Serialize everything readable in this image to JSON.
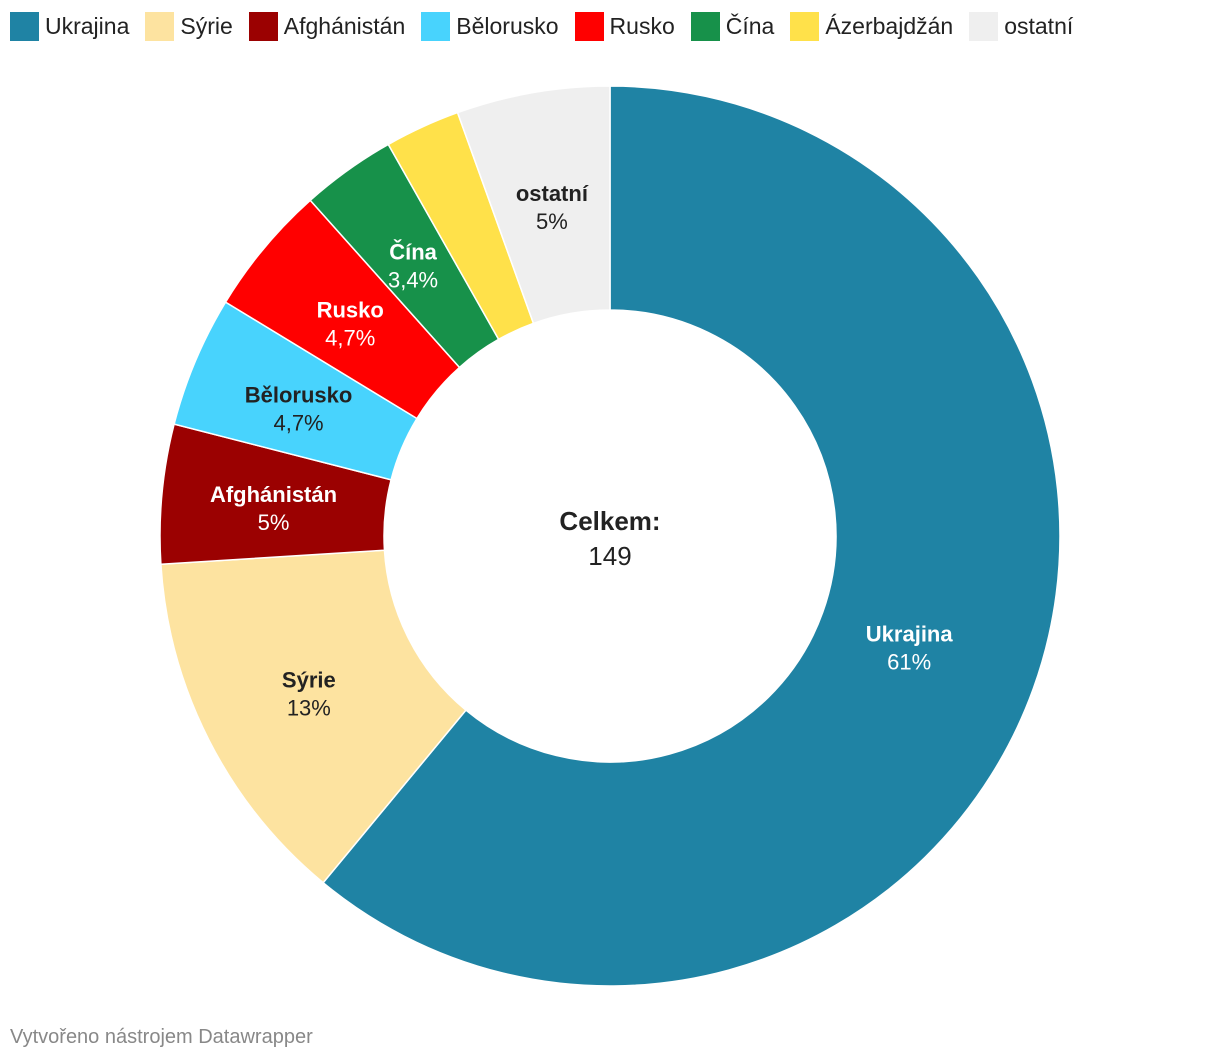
{
  "chart_data": {
    "type": "pie",
    "donut": true,
    "legend_position": "top-left",
    "center_title": "Celkem:",
    "center_value": "149",
    "slices": [
      {
        "name": "Ukrajina",
        "value": 61,
        "label": "61%",
        "color": "#1f83a4",
        "text_color": "#ffffff",
        "legend_name": "Ukrajina",
        "show_label": true
      },
      {
        "name": "Sýrie",
        "value": 13,
        "label": "13%",
        "color": "#fde3a0",
        "text_color": "#222222",
        "legend_name": "Sýrie",
        "show_label": true
      },
      {
        "name": "Afghánistán",
        "value": 5,
        "label": "5%",
        "color": "#9b0101",
        "text_color": "#ffffff",
        "legend_name": "Afghánistán",
        "show_label": true
      },
      {
        "name": "Bělorusko",
        "value": 4.7,
        "label": "4,7%",
        "color": "#48d3fd",
        "text_color": "#222222",
        "legend_name": "Bělorusko",
        "show_label": true
      },
      {
        "name": "Rusko",
        "value": 4.7,
        "label": "4,7%",
        "color": "#ff0000",
        "text_color": "#ffffff",
        "legend_name": "Rusko",
        "show_label": true
      },
      {
        "name": "Čína",
        "value": 3.4,
        "label": "3,4%",
        "color": "#17914a",
        "text_color": "#ffffff",
        "legend_name": "Čína",
        "show_label": true
      },
      {
        "name": "Ázerbajdžán",
        "value": 2.7,
        "label": "",
        "color": "#ffe14a",
        "text_color": "#222222",
        "legend_name": "Ázerbajdžán",
        "show_label": false
      },
      {
        "name": "ostatní",
        "value": 5.5,
        "label": "5%",
        "color": "#efefef",
        "text_color": "#222222",
        "legend_name": "ostatní",
        "show_label": true
      }
    ]
  },
  "footer": {
    "credit": "Vytvořeno nástrojem Datawrapper"
  }
}
